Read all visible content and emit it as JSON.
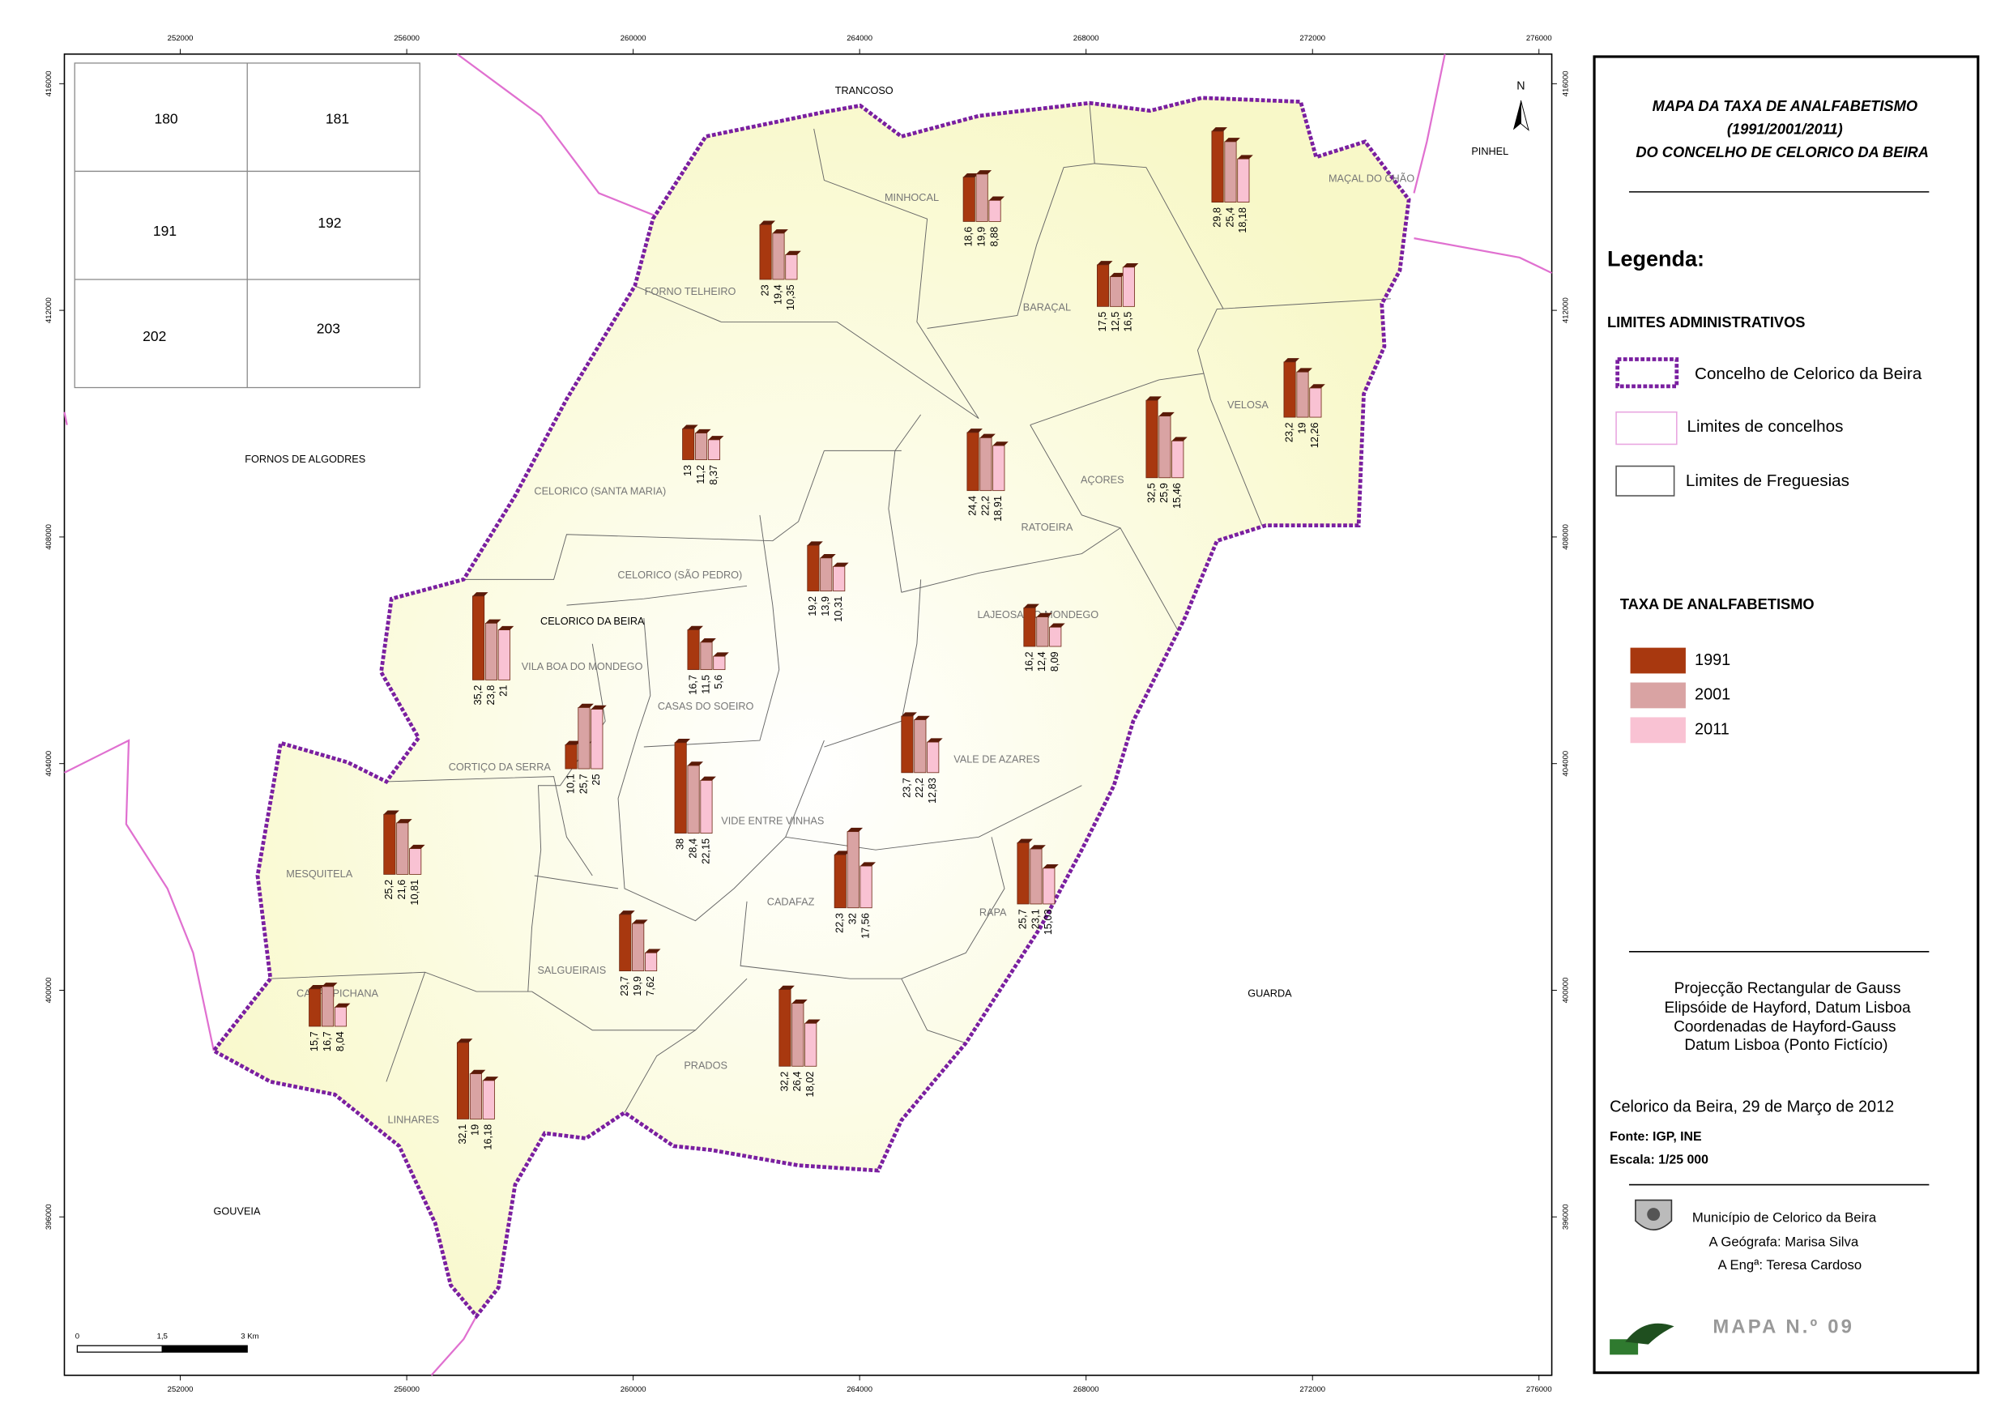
{
  "title_lines": [
    "MAPA DA TAXA DE ANALFABETISMO",
    "(1991/2001/2011)",
    "DO CONCELHO DE CELORICO DA BEIRA"
  ],
  "legend": {
    "heading": "Legenda:",
    "admin_heading": "LIMITES ADMINISTRATIVOS",
    "admin_items": [
      "Concelho de Celorico da Beira",
      "Limites de concelhos",
      "Limites de Freguesias"
    ],
    "rate_heading": "TAXA DE ANALFABETISMO",
    "series": [
      {
        "name": "1991",
        "color": "#a8380f"
      },
      {
        "name": "2001",
        "color": "#d9a3a3"
      },
      {
        "name": "2011",
        "color": "#f9c2d3"
      }
    ]
  },
  "projection": [
    "Projecção Rectangular de Gauss",
    "Elipsóide de Hayford, Datum Lisboa",
    "Coordenadas de Hayford-Gauss",
    "Datum Lisboa (Ponto Fictício)"
  ],
  "date": "Celorico da Beira, 29 de Março de 2012",
  "source": "Fonte: IGP, INE",
  "scale": "Escala: 1/25 000",
  "credits": [
    "Município de Celorico da Beira",
    "A Geógrafa: Marisa Silva",
    "A Engª: Teresa Cardoso"
  ],
  "map_number": "MAPA N.º 09",
  "north": "N",
  "scale_bar": [
    "0",
    "1,5",
    "3 Km"
  ],
  "inset": [
    "180",
    "181",
    "191",
    "192",
    "202",
    "203"
  ],
  "grid": {
    "xticks": [
      252000,
      256000,
      260000,
      264000,
      268000,
      272000,
      276000
    ],
    "yticks": [
      396000,
      400000,
      404000,
      408000,
      412000,
      416000
    ]
  },
  "neighbours": [
    "TRANCOSO",
    "PINHEL",
    "FORNOS DE ALGODRES",
    "GUARDA",
    "GOUVEIA"
  ],
  "town": "CELORICO DA BEIRA",
  "parishes": [
    {
      "name": "MINHOCAL",
      "values": [
        18.6,
        19.9,
        8.88
      ],
      "value_labels": [
        "18,6",
        "19,9",
        "8,88"
      ]
    },
    {
      "name": "MAÇAL DO CHÃO",
      "values": [
        29.8,
        25.4,
        18.18
      ],
      "value_labels": [
        "29,8",
        "25,4",
        "18,18"
      ]
    },
    {
      "name": "FORNO TELHEIRO",
      "values": [
        23,
        19.4,
        10.35
      ],
      "value_labels": [
        "23",
        "19,4",
        "10,35"
      ]
    },
    {
      "name": "BARAÇAL",
      "values": [
        17.5,
        12.5,
        16.5
      ],
      "value_labels": [
        "17,5",
        "12,5",
        "16,5"
      ]
    },
    {
      "name": "VELOSA",
      "values": [
        23.2,
        19,
        12.26
      ],
      "value_labels": [
        "23,2",
        "19",
        "12,26"
      ]
    },
    {
      "name": "CELORICO (SANTA MARIA)",
      "values": [
        13,
        11.2,
        8.37
      ],
      "value_labels": [
        "13",
        "11,2",
        "8,37"
      ]
    },
    {
      "name": "RATOEIRA",
      "values": [
        24.4,
        22.2,
        18.91
      ],
      "value_labels": [
        "24,4",
        "22,2",
        "18,91"
      ]
    },
    {
      "name": "AÇORES",
      "values": [
        32.5,
        25.9,
        15.46
      ],
      "value_labels": [
        "32,5",
        "25,9",
        "15,46"
      ]
    },
    {
      "name": "CELORICO (SÃO PEDRO)",
      "values": [
        19.2,
        13.9,
        10.31
      ],
      "value_labels": [
        "19,2",
        "13,9",
        "10,31"
      ]
    },
    {
      "name": "LAJEOSA DO MONDEGO",
      "values": [
        16.2,
        12.4,
        8.09
      ],
      "value_labels": [
        "16,2",
        "12,4",
        "8,09"
      ]
    },
    {
      "name": "VILA BOA DO MONDEGO",
      "values": [
        35.2,
        23.8,
        21
      ],
      "value_labels": [
        "35,2",
        "23,8",
        "21"
      ]
    },
    {
      "name": "CASAS DO SOEIRO",
      "values": [
        16.7,
        11.5,
        5.6
      ],
      "value_labels": [
        "16,7",
        "11,5",
        "5,6"
      ]
    },
    {
      "name": "CORTIÇO DA SERRA",
      "values": [
        10.1,
        25.7,
        25
      ],
      "value_labels": [
        "10,1",
        "25,7",
        "25"
      ]
    },
    {
      "name": "VIDE ENTRE VINHAS",
      "values": [
        38,
        28.4,
        22.15
      ],
      "value_labels": [
        "38",
        "28,4",
        "22,15"
      ]
    },
    {
      "name": "VALE DE AZARES",
      "values": [
        23.7,
        22.2,
        12.83
      ],
      "value_labels": [
        "23,7",
        "22,2",
        "12,83"
      ]
    },
    {
      "name": "MESQUITELA",
      "values": [
        25.2,
        21.6,
        10.81
      ],
      "value_labels": [
        "25,2",
        "21,6",
        "10,81"
      ]
    },
    {
      "name": "CADAFAZ",
      "values": [
        22.3,
        32,
        17.56
      ],
      "value_labels": [
        "22,3",
        "32",
        "17,56"
      ]
    },
    {
      "name": "RAPA",
      "values": [
        25.7,
        23.1,
        15.03
      ],
      "value_labels": [
        "25,7",
        "23,1",
        "15,03"
      ]
    },
    {
      "name": "SALGUEIRAIS",
      "values": [
        23.7,
        19.9,
        7.62
      ],
      "value_labels": [
        "23,7",
        "19,9",
        "7,62"
      ]
    },
    {
      "name": "CARRAPICHANA",
      "values": [
        15.7,
        16.7,
        8.04
      ],
      "value_labels": [
        "15,7",
        "16,7",
        "8,04"
      ]
    },
    {
      "name": "PRADOS",
      "values": [
        32.2,
        26.4,
        18.02
      ],
      "value_labels": [
        "32,2",
        "26,4",
        "18,02"
      ]
    },
    {
      "name": "LINHARES",
      "values": [
        32.1,
        19,
        16.18
      ],
      "value_labels": [
        "32,1",
        "19",
        "16,18"
      ]
    }
  ]
}
